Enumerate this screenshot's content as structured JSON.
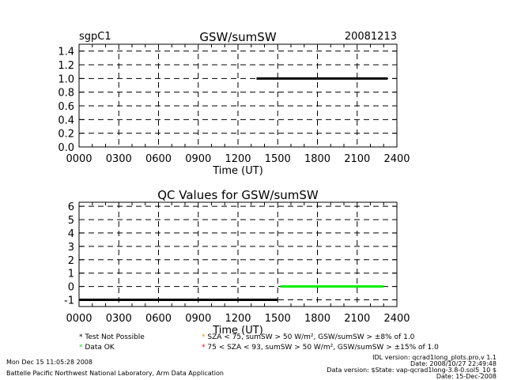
{
  "header": {
    "site": "sgpC1",
    "date": "20081213"
  },
  "chart_data": [
    {
      "type": "line",
      "title": "GSW/sumSW",
      "xlabel": "Time (UT)",
      "ylabel": "",
      "xlim": [
        0,
        2400
      ],
      "ylim": [
        0,
        1.5
      ],
      "x_ticks": [
        "0000",
        "0300",
        "0600",
        "0900",
        "1200",
        "1500",
        "1800",
        "2100",
        "2400"
      ],
      "y_ticks": [
        "0.0",
        "0.2",
        "0.4",
        "0.6",
        "0.8",
        "1.0",
        "1.2",
        "1.4"
      ],
      "y_tick_values": [
        0,
        0.2,
        0.4,
        0.6,
        0.8,
        1.0,
        1.2,
        1.4
      ],
      "grid": true,
      "series": [
        {
          "color": "#000000",
          "x": [
            1340,
            2330
          ],
          "y": [
            1.0,
            1.0
          ]
        }
      ]
    },
    {
      "type": "line",
      "title": "QC Values for GSW/sumSW",
      "xlabel": "Time (UT)",
      "ylabel": "",
      "xlim": [
        0,
        2400
      ],
      "ylim": [
        -1.5,
        6.3
      ],
      "x_ticks": [
        "0000",
        "0300",
        "0600",
        "0900",
        "1200",
        "1500",
        "1800",
        "2100",
        "2400"
      ],
      "y_ticks": [
        "-1",
        "0",
        "1",
        "2",
        "3",
        "4",
        "5",
        "6"
      ],
      "y_tick_values": [
        -1,
        0,
        1,
        2,
        3,
        4,
        5,
        6
      ],
      "grid": true,
      "series": [
        {
          "color": "#000000",
          "x": [
            0,
            1500
          ],
          "y": [
            -1.0,
            -1.0
          ]
        },
        {
          "color": "#00ee00",
          "x": [
            1520,
            2300
          ],
          "y": [
            0,
            0
          ]
        }
      ]
    }
  ],
  "legend": {
    "items": [
      {
        "symbol": "*",
        "color": "#000000",
        "text": "Test Not Possible"
      },
      {
        "symbol": "*",
        "color": "#00ee00",
        "text": "Data OK"
      },
      {
        "symbol": "*",
        "color": "#ff8800",
        "text": "SZA < 75, sumSW > 50 W/m², GSW/sumSW > ±8% of 1.0"
      },
      {
        "symbol": "*",
        "color": "#ff0000",
        "text": "75 < SZA < 93, sumSW > 50 W/m², GSW/sumSW > ±15% of 1.0"
      }
    ]
  },
  "footer": {
    "run_date": "Mon Dec 15 11:05:28 2008",
    "lab": "Battelle Pacific Northwest National Laboratory, Arm Data Application",
    "idl_version": "IDL version: qcrad1long_plots.pro,v 1.1",
    "date_line": "Date: 2008/10/27 22:49:48",
    "data_version": "Data version: $State: vap-qcrad1long-3.8-0.sol5_10 $",
    "date2": "Date: 15-Dec-2008"
  }
}
